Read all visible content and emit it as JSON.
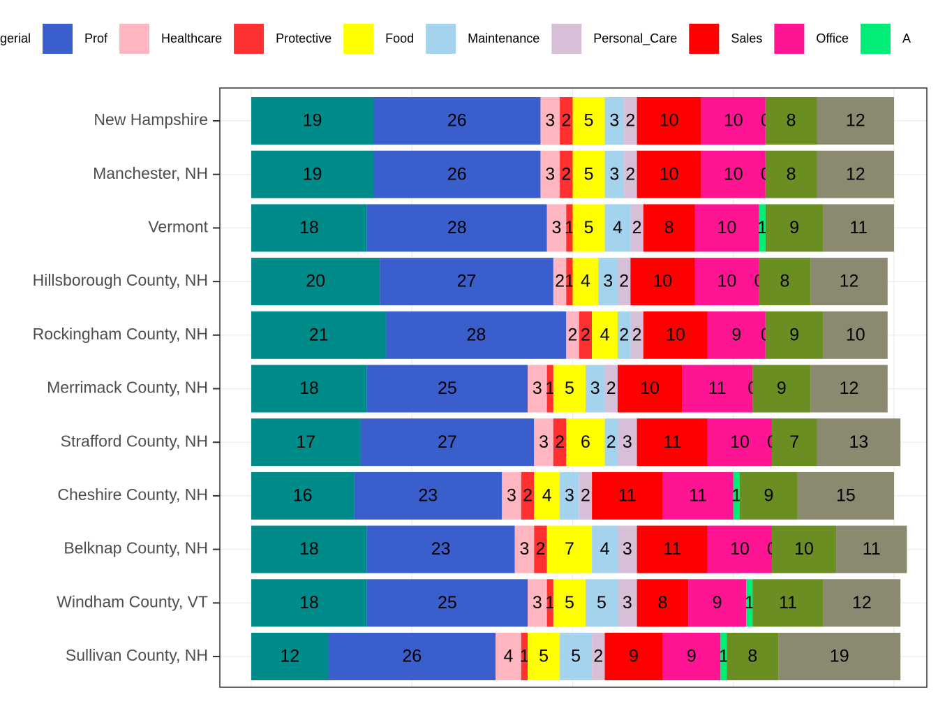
{
  "chart_data": {
    "type": "stacked_bar_horizontal",
    "categories": [
      "New Hampshire",
      "Manchester, NH",
      "Vermont",
      "Hillsborough County, NH",
      "Rockingham County, NH",
      "Merrimack County, NH",
      "Strafford County, NH",
      "Cheshire County, NH",
      "Belknap County, NH",
      "Windham County, VT",
      "Sullivan County, NH"
    ],
    "series": [
      {
        "name": "gerial",
        "color": "#008b8b",
        "values": [
          19,
          19,
          18,
          20,
          21,
          18,
          17,
          16,
          18,
          18,
          12
        ]
      },
      {
        "name": "Prof",
        "color": "#3a5fcd",
        "values": [
          26,
          26,
          28,
          27,
          28,
          25,
          27,
          23,
          23,
          25,
          26
        ]
      },
      {
        "name": "Healthcare",
        "color": "#ffb6c1",
        "values": [
          3,
          3,
          3,
          2,
          2,
          3,
          3,
          3,
          3,
          3,
          4
        ]
      },
      {
        "name": "Protective",
        "color": "#ff3030",
        "values": [
          2,
          2,
          1,
          1,
          2,
          1,
          2,
          2,
          2,
          1,
          1
        ]
      },
      {
        "name": "Food",
        "color": "#ffff00",
        "values": [
          5,
          5,
          5,
          4,
          4,
          5,
          6,
          4,
          7,
          5,
          5
        ]
      },
      {
        "name": "Maintenance",
        "color": "#a4d3ee",
        "values": [
          3,
          3,
          4,
          3,
          2,
          3,
          2,
          3,
          4,
          5,
          5
        ]
      },
      {
        "name": "Personal_Care",
        "color": "#d8bfd8",
        "values": [
          2,
          2,
          2,
          2,
          2,
          2,
          3,
          2,
          3,
          3,
          2
        ]
      },
      {
        "name": "Sales",
        "color": "#ff0000",
        "values": [
          10,
          10,
          8,
          10,
          10,
          10,
          11,
          11,
          11,
          8,
          9
        ]
      },
      {
        "name": "Office",
        "color": "#ff1493",
        "values": [
          10,
          10,
          10,
          10,
          9,
          11,
          10,
          11,
          10,
          9,
          9
        ]
      },
      {
        "name": "A",
        "color": "#00ee76",
        "values": [
          0,
          0,
          1,
          0,
          0,
          0,
          0,
          1,
          0,
          1,
          1
        ]
      },
      {
        "name": null,
        "color": "#6b8e23",
        "values": [
          8,
          8,
          9,
          8,
          9,
          9,
          7,
          9,
          10,
          11,
          8
        ]
      },
      {
        "name": null,
        "color": "#8b8970",
        "values": [
          12,
          12,
          11,
          12,
          10,
          12,
          13,
          15,
          11,
          12,
          19
        ]
      }
    ],
    "xlim": [
      0,
      100
    ],
    "xticks": [
      0,
      25,
      50,
      75,
      100
    ],
    "grid": true,
    "legend": "top"
  }
}
